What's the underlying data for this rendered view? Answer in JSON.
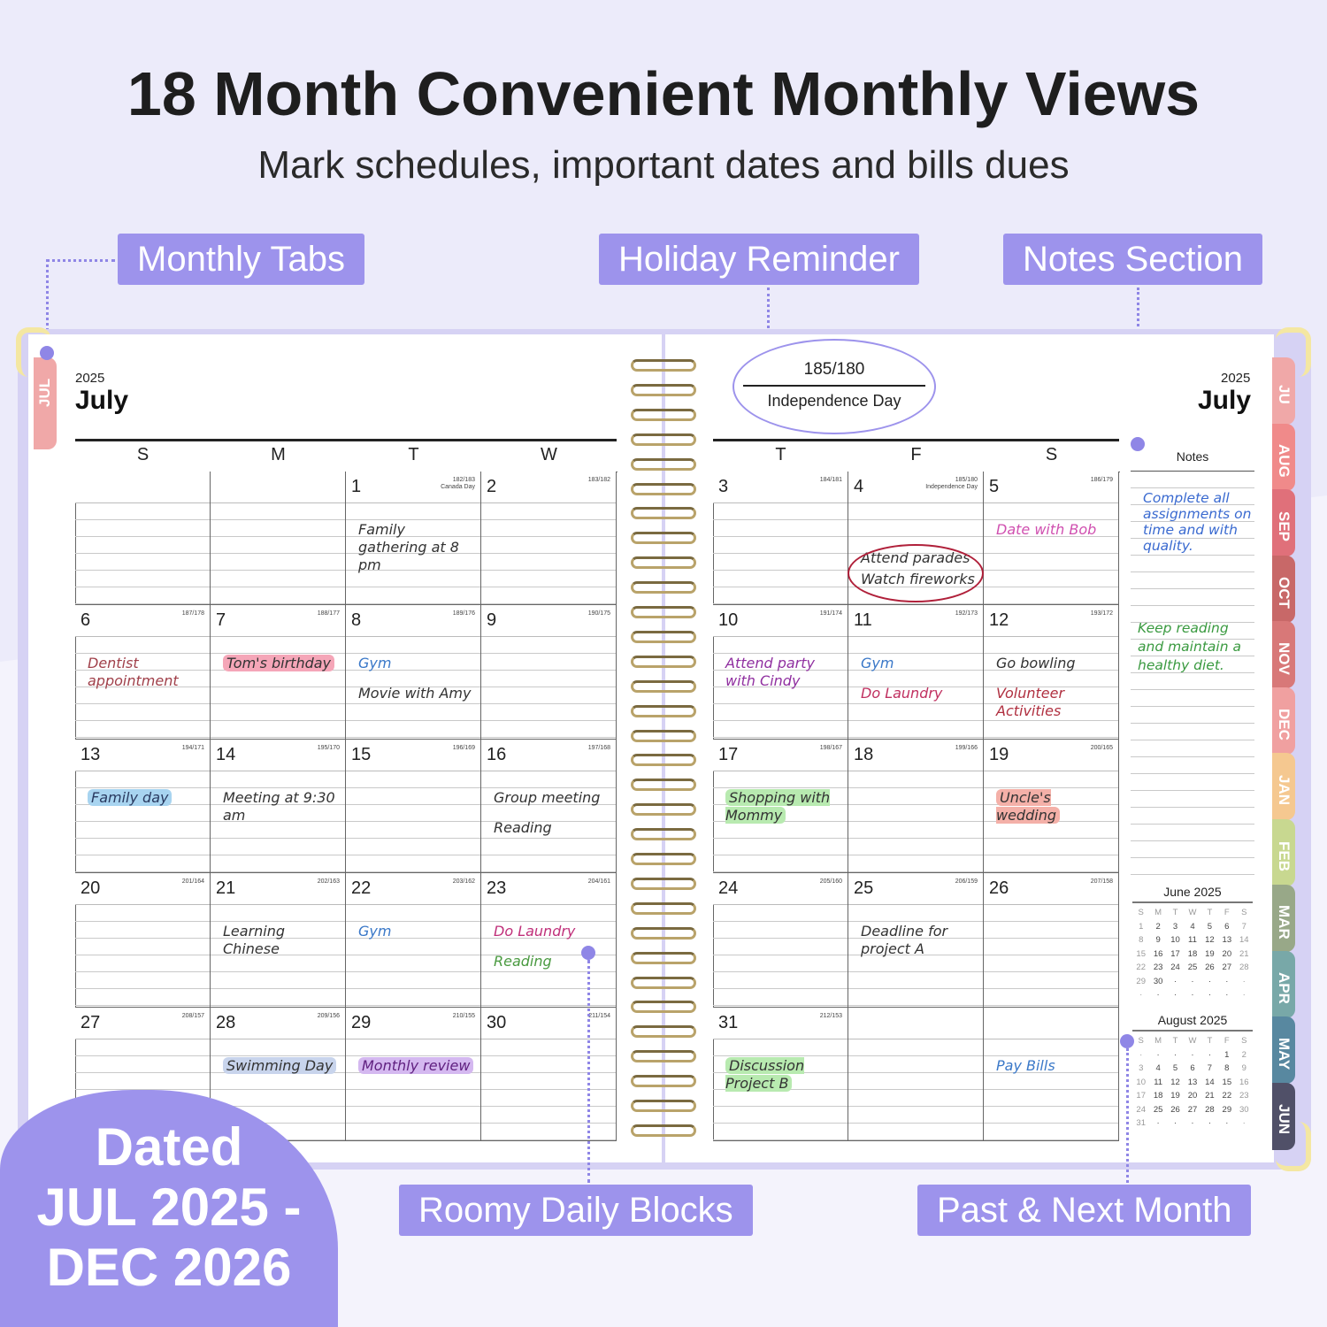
{
  "header": {
    "title": "18 Month Convenient Monthly Views",
    "subtitle": "Mark schedules, important dates and bills dues"
  },
  "labels": {
    "monthly_tabs": "Monthly Tabs",
    "holiday_reminder": "Holiday Reminder",
    "notes_section": "Notes Section",
    "roomy_daily_blocks": "Roomy Daily Blocks",
    "past_next_month": "Past & Next Month"
  },
  "badge": {
    "line1": "Dated",
    "line2": "JUL 2025 -",
    "line3": "DEC 2026",
    "color": "#9d93ec"
  },
  "colors": {
    "background": "#ecebfa",
    "accent": "#9d93ec"
  },
  "left_page": {
    "year": "2025",
    "month": "July",
    "tab": "JUL",
    "weekdays": [
      "S",
      "M",
      "T",
      "W"
    ],
    "weeks": [
      [
        null,
        null,
        {
          "day": "1",
          "doy": "182/183",
          "holiday": "Canada Day",
          "notes": [
            {
              "text": "Family gathering at 8 pm",
              "color": "#333"
            }
          ]
        },
        {
          "day": "2",
          "doy": "183/182"
        }
      ],
      [
        {
          "day": "6",
          "doy": "187/178",
          "notes": [
            {
              "text": "Dentist appointment",
              "color": "#a0404a"
            }
          ]
        },
        {
          "day": "7",
          "doy": "188/177",
          "notes": [
            {
              "text": "Tom's birthday",
              "color": "#333",
              "highlight": "#f5a6b8"
            }
          ]
        },
        {
          "day": "8",
          "doy": "189/176",
          "notes": [
            {
              "text": "Gym",
              "color": "#3a78c8"
            },
            {
              "text": "Movie with Amy",
              "color": "#333"
            }
          ]
        },
        {
          "day": "9",
          "doy": "190/175"
        }
      ],
      [
        {
          "day": "13",
          "doy": "194/171",
          "notes": [
            {
              "text": "Family day",
              "color": "#2a3a60",
              "highlight": "#a8d4f0"
            }
          ]
        },
        {
          "day": "14",
          "doy": "195/170",
          "notes": [
            {
              "text": "Meeting at 9:30 am",
              "color": "#333"
            }
          ]
        },
        {
          "day": "15",
          "doy": "196/169"
        },
        {
          "day": "16",
          "doy": "197/168",
          "notes": [
            {
              "text": "Group meeting",
              "color": "#333"
            },
            {
              "text": "Reading",
              "color": "#333"
            }
          ]
        }
      ],
      [
        {
          "day": "20",
          "doy": "201/164"
        },
        {
          "day": "21",
          "doy": "202/163",
          "notes": [
            {
              "text": "Learning Chinese",
              "color": "#333"
            }
          ]
        },
        {
          "day": "22",
          "doy": "203/162",
          "notes": [
            {
              "text": "Gym",
              "color": "#3a78c8"
            }
          ]
        },
        {
          "day": "23",
          "doy": "204/161",
          "notes": [
            {
              "text": "Do Laundry",
              "color": "#c0307a"
            },
            {
              "text": "Reading",
              "color": "#4a9a40"
            }
          ]
        }
      ],
      [
        {
          "day": "27",
          "doy": "208/157"
        },
        {
          "day": "28",
          "doy": "209/156",
          "notes": [
            {
              "text": "Swimming Day",
              "color": "#333",
              "highlight": "#c8d4ec"
            }
          ]
        },
        {
          "day": "29",
          "doy": "210/155",
          "notes": [
            {
              "text": "Monthly review",
              "color": "#602080",
              "highlight": "#d4b8f0"
            }
          ]
        },
        {
          "day": "30",
          "doy": "211/154"
        }
      ]
    ]
  },
  "right_page": {
    "year": "2025",
    "month": "July",
    "weekdays": [
      "T",
      "F",
      "S"
    ],
    "notes_header": "Notes",
    "weeks": [
      [
        {
          "day": "3",
          "doy": "184/181"
        },
        {
          "day": "4",
          "doy": "185/180",
          "holiday": "Independence Day",
          "notes": [
            {
              "text": "Attend parades",
              "color": "#333"
            },
            {
              "text": "Watch fireworks",
              "color": "#333"
            }
          ],
          "circled": true
        },
        {
          "day": "5",
          "doy": "186/179",
          "notes": [
            {
              "text": "Date with Bob",
              "color": "#d050b0"
            }
          ]
        }
      ],
      [
        {
          "day": "10",
          "doy": "191/174",
          "notes": [
            {
              "text": "Attend party with Cindy",
              "color": "#9030a0"
            }
          ]
        },
        {
          "day": "11",
          "doy": "192/173",
          "notes": [
            {
              "text": "Gym",
              "color": "#3a78c8"
            },
            {
              "text": "Do Laundry",
              "color": "#c03060"
            }
          ]
        },
        {
          "day": "12",
          "doy": "193/172",
          "notes": [
            {
              "text": "Go bowling",
              "color": "#333"
            },
            {
              "text": "Volunteer Activities",
              "color": "#b03040"
            }
          ]
        }
      ],
      [
        {
          "day": "17",
          "doy": "198/167",
          "notes": [
            {
              "text": "Shopping with Mommy",
              "color": "#333",
              "highlight": "#b8eab0"
            }
          ]
        },
        {
          "day": "18",
          "doy": "199/166"
        },
        {
          "day": "19",
          "doy": "200/165",
          "notes": [
            {
              "text": "Uncle's wedding",
              "color": "#333",
              "highlight": "#f4b0a8"
            }
          ]
        }
      ],
      [
        {
          "day": "24",
          "doy": "205/160"
        },
        {
          "day": "25",
          "doy": "206/159",
          "notes": [
            {
              "text": "Deadline for project A",
              "color": "#333"
            }
          ]
        },
        {
          "day": "26",
          "doy": "207/158"
        }
      ],
      [
        {
          "day": "31",
          "doy": "212/153",
          "notes": [
            {
              "text": "Discussion Project B",
              "color": "#333",
              "highlight": "#b8eab0"
            }
          ]
        },
        null,
        {
          "notes": [
            {
              "text": "Pay Bills",
              "color": "#3a78c8"
            }
          ]
        }
      ]
    ],
    "holiday_callout": {
      "doy": "185/180",
      "name": "Independence Day"
    },
    "notes_entries": [
      {
        "text": "Complete all assignments on time and with quality.",
        "color": "#3a6ad0"
      },
      {
        "text": "Keep reading and maintain a healthy diet.",
        "color": "#3a9a40"
      }
    ],
    "mini_calendars": [
      {
        "title": "June 2025",
        "weekdays": [
          "S",
          "M",
          "T",
          "W",
          "T",
          "F",
          "S"
        ],
        "weeks": [
          [
            "1",
            "2",
            "3",
            "4",
            "5",
            "6",
            "7"
          ],
          [
            "8",
            "9",
            "10",
            "11",
            "12",
            "13",
            "14"
          ],
          [
            "15",
            "16",
            "17",
            "18",
            "19",
            "20",
            "21"
          ],
          [
            "22",
            "23",
            "24",
            "25",
            "26",
            "27",
            "28"
          ],
          [
            "29",
            "30",
            "·",
            "·",
            "·",
            "·",
            "·"
          ],
          [
            "·",
            "·",
            "·",
            "·",
            "·",
            "·",
            "·"
          ]
        ]
      },
      {
        "title": "August 2025",
        "weekdays": [
          "S",
          "M",
          "T",
          "W",
          "T",
          "F",
          "S"
        ],
        "weeks": [
          [
            "·",
            "·",
            "·",
            "·",
            "·",
            "1",
            "2"
          ],
          [
            "3",
            "4",
            "5",
            "6",
            "7",
            "8",
            "9"
          ],
          [
            "10",
            "11",
            "12",
            "13",
            "14",
            "15",
            "16"
          ],
          [
            "17",
            "18",
            "19",
            "20",
            "21",
            "22",
            "23"
          ],
          [
            "24",
            "25",
            "26",
            "27",
            "28",
            "29",
            "30"
          ],
          [
            "31",
            "·",
            "·",
            "·",
            "·",
            "·",
            "·"
          ]
        ]
      }
    ],
    "tabs": [
      {
        "label": "JU",
        "color": "#f0a8a8"
      },
      {
        "label": "AUG",
        "color": "#f08a8a"
      },
      {
        "label": "SEP",
        "color": "#e0707a"
      },
      {
        "label": "OCT",
        "color": "#c86868"
      },
      {
        "label": "NOV",
        "color": "#d87878"
      },
      {
        "label": "DEC",
        "color": "#f0a0a0"
      },
      {
        "label": "JAN",
        "color": "#f5c890"
      },
      {
        "label": "FEB",
        "color": "#c8d890"
      },
      {
        "label": "MAR",
        "color": "#98a888"
      },
      {
        "label": "APR",
        "color": "#78a8a8"
      },
      {
        "label": "MAY",
        "color": "#5888a0"
      },
      {
        "label": "JUN",
        "color": "#505068"
      }
    ]
  }
}
